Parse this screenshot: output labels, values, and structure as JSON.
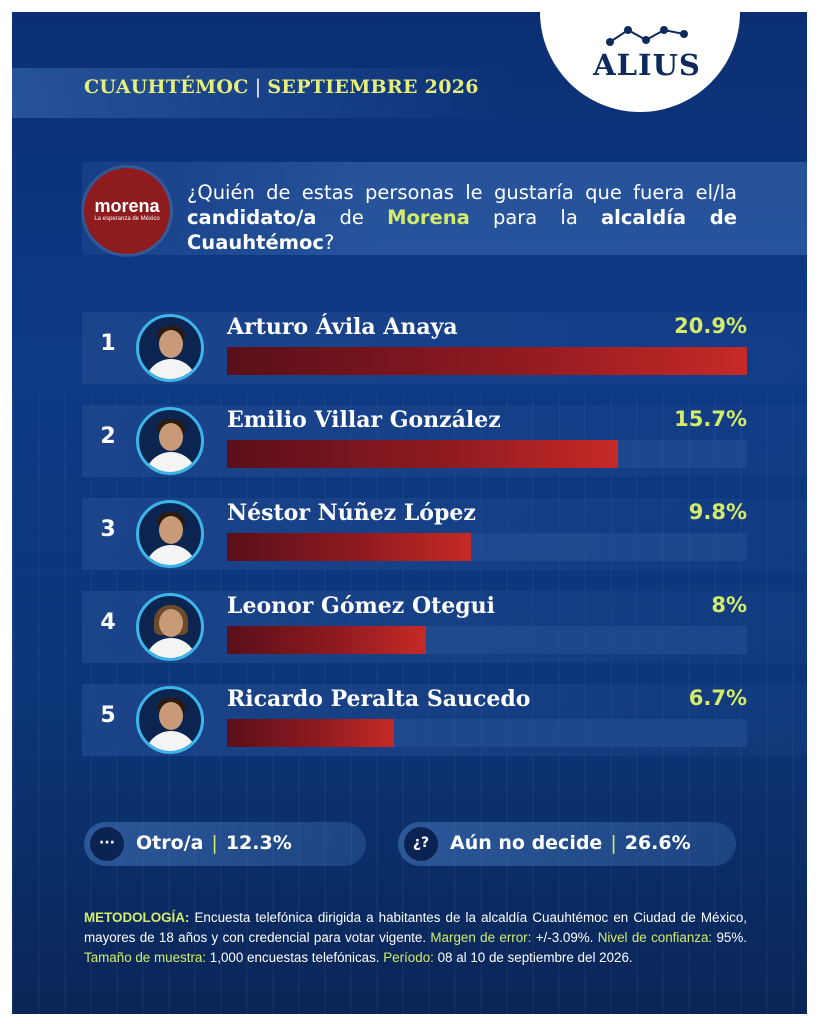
{
  "brand": {
    "name": "ALIUS"
  },
  "header": {
    "place": "CUAUHTÉMOC",
    "date": "SEPTIEMBRE 2026"
  },
  "party": {
    "name": "morena",
    "tagline": "La esperanza de México"
  },
  "question": {
    "part1": "¿Quién de estas personas le gustaría que fuera el/la ",
    "part2": "candidato/a",
    "part3": " de ",
    "part4": "Morena",
    "part5": " para la ",
    "part6": "alcaldía de Cuauhtémoc",
    "part7": "?"
  },
  "chart_data": {
    "type": "bar",
    "orientation": "horizontal",
    "title": "",
    "xlabel": "",
    "ylabel": "",
    "xlim": [
      0,
      20.9
    ],
    "categories": [
      "Arturo Ávila Anaya",
      "Emilio Villar González",
      "Néstor Núñez López",
      "Leonor Gómez Otegui",
      "Ricardo Peralta Saucedo"
    ],
    "ranks": [
      "1",
      "2",
      "3",
      "4",
      "5"
    ],
    "values": [
      20.9,
      15.7,
      9.8,
      8,
      6.7
    ],
    "value_labels": [
      "20.9%",
      "15.7%",
      "9.8%",
      "8%",
      "6.7%"
    ],
    "colors": {
      "bar": "#c62a26",
      "value": "#d4ec6a",
      "track": "#2a5096"
    }
  },
  "others": {
    "other": {
      "icon": "···",
      "label": "Otro/a",
      "value": "12.3%"
    },
    "undecided": {
      "icon": "¿?",
      "label": "Aún no decide",
      "value": "26.6%"
    }
  },
  "methodology": {
    "k1": "METODOLOGÍA:",
    "t1": " Encuesta telefónica dirigida a habitantes de la alcaldía Cuauhtémoc en Ciudad de México, mayores de 18 años y con credencial para votar vigente. ",
    "k2": "Margen de error:",
    "t2": " +/-3.09%. ",
    "k3": "Nivel de confianza:",
    "t3": " 95%. ",
    "k4": "Tamaño de muestra:",
    "t4": " 1,000 encuestas telefónicas. ",
    "k5": "Período:",
    "t5": " 08 al 10 de septiembre del 2026."
  }
}
